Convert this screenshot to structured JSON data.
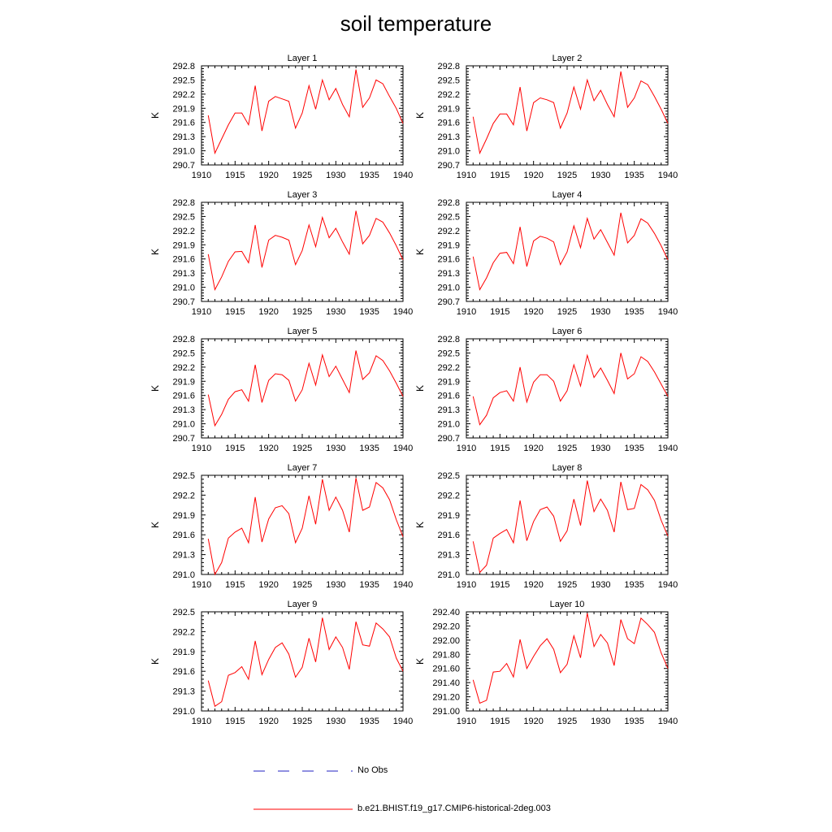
{
  "title": "soil temperature",
  "legend": [
    {
      "label": "No Obs",
      "color": "#2020c0",
      "style": "dashed"
    },
    {
      "label": "b.e21.BHIST.f19_g17.CMIP6-historical-2deg.003",
      "color": "#ff0000",
      "style": "solid"
    }
  ],
  "chart_data": [
    {
      "type": "line",
      "title": "Layer 1",
      "ylabel": "K",
      "x": [
        1911,
        1912,
        1913,
        1914,
        1915,
        1916,
        1917,
        1918,
        1919,
        1920,
        1921,
        1922,
        1923,
        1924,
        1925,
        1926,
        1927,
        1928,
        1929,
        1930,
        1931,
        1932,
        1933,
        1934,
        1935,
        1936,
        1937,
        1938,
        1939,
        1940
      ],
      "series": [
        {
          "color": "#ff0000",
          "values": [
            291.75,
            290.95,
            291.25,
            291.55,
            291.8,
            291.8,
            291.55,
            292.38,
            291.42,
            292.05,
            292.15,
            292.1,
            292.05,
            291.48,
            291.8,
            292.38,
            291.88,
            292.5,
            292.08,
            292.32,
            291.98,
            291.72,
            292.72,
            291.92,
            292.12,
            292.5,
            292.42,
            292.15,
            291.9,
            291.58
          ]
        }
      ],
      "xticks": [
        1910,
        1915,
        1920,
        1925,
        1930,
        1935,
        1940
      ],
      "yticks": [
        "290.7",
        "291.0",
        "291.3",
        "291.6",
        "291.9",
        "292.2",
        "292.5",
        "292.8"
      ],
      "xlim": [
        1910,
        1940
      ],
      "ylim": [
        290.7,
        292.8
      ]
    },
    {
      "type": "line",
      "title": "Layer 2",
      "ylabel": "K",
      "x": [
        1911,
        1912,
        1913,
        1914,
        1915,
        1916,
        1917,
        1918,
        1919,
        1920,
        1921,
        1922,
        1923,
        1924,
        1925,
        1926,
        1927,
        1928,
        1929,
        1930,
        1931,
        1932,
        1933,
        1934,
        1935,
        1936,
        1937,
        1938,
        1939,
        1940
      ],
      "series": [
        {
          "color": "#ff0000",
          "values": [
            291.72,
            290.95,
            291.25,
            291.58,
            291.78,
            291.78,
            291.55,
            292.35,
            291.42,
            292.02,
            292.12,
            292.08,
            292.02,
            291.48,
            291.8,
            292.35,
            291.88,
            292.5,
            292.06,
            292.28,
            291.98,
            291.72,
            292.68,
            291.92,
            292.12,
            292.48,
            292.4,
            292.15,
            291.88,
            291.58
          ]
        }
      ],
      "xticks": [
        1910,
        1915,
        1920,
        1925,
        1930,
        1935,
        1940
      ],
      "yticks": [
        "290.7",
        "291.0",
        "291.3",
        "291.6",
        "291.9",
        "292.2",
        "292.5",
        "292.8"
      ],
      "xlim": [
        1910,
        1940
      ],
      "ylim": [
        290.7,
        292.8
      ]
    },
    {
      "type": "line",
      "title": "Layer 3",
      "ylabel": "K",
      "x": [
        1911,
        1912,
        1913,
        1914,
        1915,
        1916,
        1917,
        1918,
        1919,
        1920,
        1921,
        1922,
        1923,
        1924,
        1925,
        1926,
        1927,
        1928,
        1929,
        1930,
        1931,
        1932,
        1933,
        1934,
        1935,
        1936,
        1937,
        1938,
        1939,
        1940
      ],
      "series": [
        {
          "color": "#ff0000",
          "values": [
            291.7,
            290.95,
            291.22,
            291.55,
            291.75,
            291.76,
            291.52,
            292.32,
            291.42,
            292.0,
            292.1,
            292.06,
            292.0,
            291.48,
            291.78,
            292.32,
            291.86,
            292.48,
            292.05,
            292.25,
            291.96,
            291.7,
            292.62,
            291.92,
            292.1,
            292.46,
            292.38,
            292.15,
            291.88,
            291.58
          ]
        }
      ],
      "xticks": [
        1910,
        1915,
        1920,
        1925,
        1930,
        1935,
        1940
      ],
      "yticks": [
        "290.7",
        "291.0",
        "291.3",
        "291.6",
        "291.9",
        "292.2",
        "292.5",
        "292.8"
      ],
      "xlim": [
        1910,
        1940
      ],
      "ylim": [
        290.7,
        292.8
      ]
    },
    {
      "type": "line",
      "title": "Layer 4",
      "ylabel": "K",
      "x": [
        1911,
        1912,
        1913,
        1914,
        1915,
        1916,
        1917,
        1918,
        1919,
        1920,
        1921,
        1922,
        1923,
        1924,
        1925,
        1926,
        1927,
        1928,
        1929,
        1930,
        1931,
        1932,
        1933,
        1934,
        1935,
        1936,
        1937,
        1938,
        1939,
        1940
      ],
      "series": [
        {
          "color": "#ff0000",
          "values": [
            291.65,
            290.95,
            291.2,
            291.52,
            291.72,
            291.74,
            291.5,
            292.28,
            291.44,
            291.98,
            292.08,
            292.04,
            291.96,
            291.48,
            291.75,
            292.3,
            291.84,
            292.46,
            292.02,
            292.22,
            291.95,
            291.68,
            292.58,
            291.94,
            292.1,
            292.45,
            292.36,
            292.14,
            291.88,
            291.58
          ]
        }
      ],
      "xticks": [
        1910,
        1915,
        1920,
        1925,
        1930,
        1935,
        1940
      ],
      "yticks": [
        "290.7",
        "291.0",
        "291.3",
        "291.6",
        "291.9",
        "292.2",
        "292.5",
        "292.8"
      ],
      "xlim": [
        1910,
        1940
      ],
      "ylim": [
        290.7,
        292.8
      ]
    },
    {
      "type": "line",
      "title": "Layer 5",
      "ylabel": "K",
      "x": [
        1911,
        1912,
        1913,
        1914,
        1915,
        1916,
        1917,
        1918,
        1919,
        1920,
        1921,
        1922,
        1923,
        1924,
        1925,
        1926,
        1927,
        1928,
        1929,
        1930,
        1931,
        1932,
        1933,
        1934,
        1935,
        1936,
        1937,
        1938,
        1939,
        1940
      ],
      "series": [
        {
          "color": "#ff0000",
          "values": [
            291.62,
            290.96,
            291.2,
            291.52,
            291.68,
            291.72,
            291.48,
            292.25,
            291.45,
            291.92,
            292.06,
            292.04,
            291.92,
            291.48,
            291.72,
            292.28,
            291.82,
            292.46,
            292.0,
            292.22,
            291.94,
            291.66,
            292.55,
            291.94,
            292.08,
            292.44,
            292.34,
            292.12,
            291.86,
            291.58
          ]
        }
      ],
      "xticks": [
        1910,
        1915,
        1920,
        1925,
        1930,
        1935,
        1940
      ],
      "yticks": [
        "290.7",
        "291.0",
        "291.3",
        "291.6",
        "291.9",
        "292.2",
        "292.5",
        "292.8"
      ],
      "xlim": [
        1910,
        1940
      ],
      "ylim": [
        290.7,
        292.8
      ]
    },
    {
      "type": "line",
      "title": "Layer 6",
      "ylabel": "K",
      "x": [
        1911,
        1912,
        1913,
        1914,
        1915,
        1916,
        1917,
        1918,
        1919,
        1920,
        1921,
        1922,
        1923,
        1924,
        1925,
        1926,
        1927,
        1928,
        1929,
        1930,
        1931,
        1932,
        1933,
        1934,
        1935,
        1936,
        1937,
        1938,
        1939,
        1940
      ],
      "series": [
        {
          "color": "#ff0000",
          "values": [
            291.58,
            290.98,
            291.18,
            291.55,
            291.66,
            291.7,
            291.48,
            292.2,
            291.46,
            291.88,
            292.04,
            292.04,
            291.9,
            291.48,
            291.7,
            292.25,
            291.8,
            292.45,
            291.98,
            292.18,
            291.92,
            291.64,
            292.5,
            291.95,
            292.06,
            292.42,
            292.32,
            292.1,
            291.84,
            291.58
          ]
        }
      ],
      "xticks": [
        1910,
        1915,
        1920,
        1925,
        1930,
        1935,
        1940
      ],
      "yticks": [
        "290.7",
        "291.0",
        "291.3",
        "291.6",
        "291.9",
        "292.2",
        "292.5",
        "292.8"
      ],
      "xlim": [
        1910,
        1940
      ],
      "ylim": [
        290.7,
        292.8
      ]
    },
    {
      "type": "line",
      "title": "Layer 7",
      "ylabel": "K",
      "x": [
        1911,
        1912,
        1913,
        1914,
        1915,
        1916,
        1917,
        1918,
        1919,
        1920,
        1921,
        1922,
        1923,
        1924,
        1925,
        1926,
        1927,
        1928,
        1929,
        1930,
        1931,
        1932,
        1933,
        1934,
        1935,
        1936,
        1937,
        1938,
        1939,
        1940
      ],
      "series": [
        {
          "color": "#ff0000",
          "values": [
            291.54,
            291.0,
            291.18,
            291.55,
            291.64,
            291.7,
            291.48,
            292.17,
            291.49,
            291.84,
            292.01,
            292.04,
            291.92,
            291.48,
            291.7,
            292.19,
            291.76,
            292.44,
            291.97,
            292.17,
            291.97,
            291.64,
            292.46,
            291.97,
            292.02,
            292.39,
            292.31,
            292.13,
            291.83,
            291.57
          ]
        }
      ],
      "xticks": [
        1910,
        1915,
        1920,
        1925,
        1930,
        1935,
        1940
      ],
      "yticks": [
        "291.0",
        "291.3",
        "291.6",
        "291.9",
        "292.2",
        "292.5"
      ],
      "xlim": [
        1910,
        1940
      ],
      "ylim": [
        291.0,
        292.5
      ]
    },
    {
      "type": "line",
      "title": "Layer 8",
      "ylabel": "K",
      "x": [
        1911,
        1912,
        1913,
        1914,
        1915,
        1916,
        1917,
        1918,
        1919,
        1920,
        1921,
        1922,
        1923,
        1924,
        1925,
        1926,
        1927,
        1928,
        1929,
        1930,
        1931,
        1932,
        1933,
        1934,
        1935,
        1936,
        1937,
        1938,
        1939,
        1940
      ],
      "series": [
        {
          "color": "#ff0000",
          "values": [
            291.5,
            291.03,
            291.14,
            291.55,
            291.62,
            291.68,
            291.48,
            292.12,
            291.51,
            291.8,
            291.98,
            292.02,
            291.88,
            291.5,
            291.66,
            292.14,
            291.74,
            292.42,
            291.95,
            292.14,
            291.97,
            291.64,
            292.4,
            291.98,
            292.0,
            292.36,
            292.28,
            292.12,
            291.82,
            291.58
          ]
        }
      ],
      "xticks": [
        1910,
        1915,
        1920,
        1925,
        1930,
        1935,
        1940
      ],
      "yticks": [
        "291.0",
        "291.3",
        "291.6",
        "291.9",
        "292.2",
        "292.5"
      ],
      "xlim": [
        1910,
        1940
      ],
      "ylim": [
        291.0,
        292.5
      ]
    },
    {
      "type": "line",
      "title": "Layer 9",
      "ylabel": "K",
      "x": [
        1911,
        1912,
        1913,
        1914,
        1915,
        1916,
        1917,
        1918,
        1919,
        1920,
        1921,
        1922,
        1923,
        1924,
        1925,
        1926,
        1927,
        1928,
        1929,
        1930,
        1931,
        1932,
        1933,
        1934,
        1935,
        1936,
        1937,
        1938,
        1939,
        1940
      ],
      "series": [
        {
          "color": "#ff0000",
          "values": [
            291.46,
            291.07,
            291.14,
            291.54,
            291.58,
            291.67,
            291.48,
            292.06,
            291.55,
            291.78,
            291.96,
            292.03,
            291.86,
            291.51,
            291.66,
            292.1,
            291.74,
            292.41,
            291.93,
            292.12,
            291.96,
            291.63,
            292.35,
            292.0,
            291.98,
            292.33,
            292.24,
            292.12,
            291.8,
            291.6
          ]
        }
      ],
      "xticks": [
        1910,
        1915,
        1920,
        1925,
        1930,
        1935,
        1940
      ],
      "yticks": [
        "291.0",
        "291.3",
        "291.6",
        "291.9",
        "292.2",
        "292.5"
      ],
      "xlim": [
        1910,
        1940
      ],
      "ylim": [
        291.0,
        292.5
      ]
    },
    {
      "type": "line",
      "title": "Layer 10",
      "ylabel": "K",
      "x": [
        1911,
        1912,
        1913,
        1914,
        1915,
        1916,
        1917,
        1918,
        1919,
        1920,
        1921,
        1922,
        1923,
        1924,
        1925,
        1926,
        1927,
        1928,
        1929,
        1930,
        1931,
        1932,
        1933,
        1934,
        1935,
        1936,
        1937,
        1938,
        1939,
        1940
      ],
      "series": [
        {
          "color": "#ff0000",
          "values": [
            291.44,
            291.11,
            291.15,
            291.55,
            291.56,
            291.67,
            291.48,
            292.01,
            291.6,
            291.77,
            291.92,
            292.02,
            291.87,
            291.54,
            291.66,
            292.06,
            291.75,
            292.38,
            291.91,
            292.08,
            291.96,
            291.64,
            292.29,
            292.02,
            291.95,
            292.31,
            292.22,
            292.11,
            291.82,
            291.6
          ]
        }
      ],
      "xticks": [
        1910,
        1915,
        1920,
        1925,
        1930,
        1935,
        1940
      ],
      "yticks": [
        "291.00",
        "291.20",
        "291.40",
        "291.60",
        "291.80",
        "292.00",
        "292.20",
        "292.40"
      ],
      "xlim": [
        1910,
        1940
      ],
      "ylim": [
        291.0,
        292.4
      ]
    }
  ]
}
